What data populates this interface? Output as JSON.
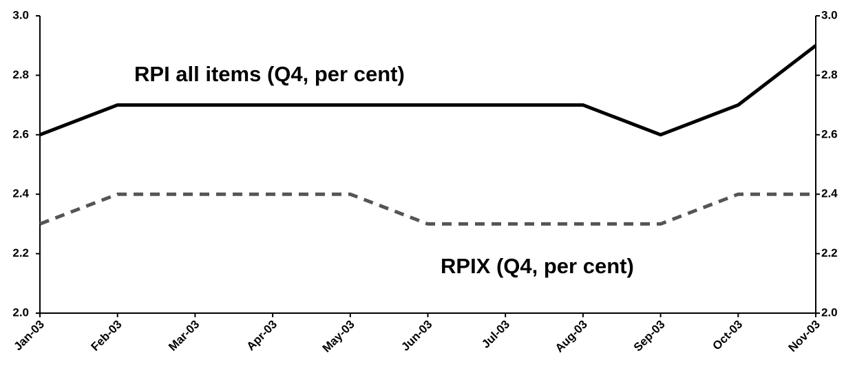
{
  "chart_data": {
    "type": "line",
    "categories": [
      "Jan-03",
      "Feb-03",
      "Mar-03",
      "Apr-03",
      "May-03",
      "Jun-03",
      "Jul-03",
      "Aug-03",
      "Sep-03",
      "Oct-03",
      "Nov-03"
    ],
    "series": [
      {
        "name": "RPI all items (Q4, per cent)",
        "color": "#000000",
        "dashed": false,
        "values": [
          2.6,
          2.7,
          2.7,
          2.7,
          2.7,
          2.7,
          2.7,
          2.7,
          2.6,
          2.7,
          2.9
        ]
      },
      {
        "name": "RPIX (Q4, per cent)",
        "color": "#555555",
        "dashed": true,
        "values": [
          2.3,
          2.4,
          2.4,
          2.4,
          2.4,
          2.3,
          2.3,
          2.3,
          2.3,
          2.4,
          2.4
        ]
      }
    ],
    "ylim": [
      2,
      3
    ],
    "yticks": [
      {
        "value": 2,
        "label": "2.0"
      },
      2.2,
      2.4,
      2.6,
      2.8,
      {
        "value": 3,
        "label": "3.0"
      }
    ],
    "y2lim": [
      2,
      3
    ],
    "y2ticks": [
      {
        "value": 2,
        "label": "2.0"
      },
      2.2,
      2.4,
      2.6,
      2.8,
      {
        "value": 3,
        "label": "3.0"
      }
    ],
    "grid": false
  }
}
